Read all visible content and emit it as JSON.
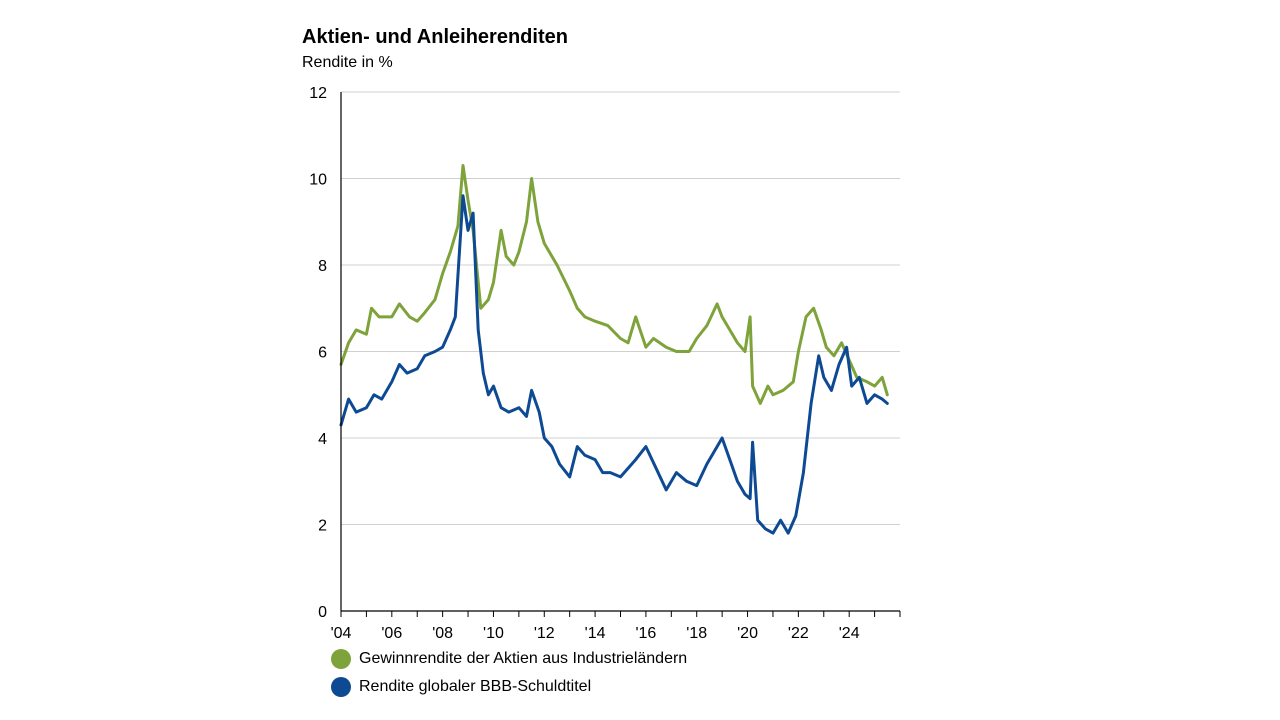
{
  "colors": {
    "equity": "#7ea33a",
    "bond": "#0e4a94",
    "grid": "#d0d0d0",
    "axis": "#000000"
  },
  "chart_data": {
    "type": "line",
    "title": "Aktien- und Anleiherenditen",
    "ylabel": "Rendite in %",
    "xlabel": "",
    "ylim": [
      0,
      12
    ],
    "yticks": [
      0,
      2,
      4,
      6,
      8,
      10,
      12
    ],
    "xlim": [
      2004,
      2026
    ],
    "xticks": [
      2004,
      2006,
      2008,
      2010,
      2012,
      2014,
      2016,
      2018,
      2020,
      2022,
      2024
    ],
    "xtick_labels": [
      "'04",
      "'06",
      "'08",
      "'10",
      "'12",
      "'14",
      "'16",
      "'18",
      "'20",
      "'22",
      "'24"
    ],
    "grid": "horizontal",
    "legend_position": "bottom-left",
    "series": [
      {
        "name": "Gewinnrendite der Aktien aus Industrieländern",
        "color": "#7ea33a",
        "x": [
          2004.0,
          2004.3,
          2004.6,
          2005.0,
          2005.2,
          2005.5,
          2006.0,
          2006.3,
          2006.7,
          2007.0,
          2007.3,
          2007.7,
          2008.0,
          2008.3,
          2008.6,
          2008.8,
          2009.0,
          2009.2,
          2009.5,
          2009.8,
          2010.0,
          2010.3,
          2010.5,
          2010.8,
          2011.0,
          2011.3,
          2011.5,
          2011.75,
          2012.0,
          2012.5,
          2013.0,
          2013.3,
          2013.6,
          2014.0,
          2014.5,
          2015.0,
          2015.3,
          2015.6,
          2016.0,
          2016.3,
          2016.8,
          2017.2,
          2017.7,
          2018.0,
          2018.4,
          2018.8,
          2019.0,
          2019.3,
          2019.6,
          2019.9,
          2020.1,
          2020.2,
          2020.5,
          2020.8,
          2021.0,
          2021.4,
          2021.8,
          2022.0,
          2022.3,
          2022.6,
          2022.9,
          2023.1,
          2023.4,
          2023.7,
          2024.0,
          2024.3,
          2024.7,
          2025.0,
          2025.3,
          2025.5
        ],
        "values": [
          5.7,
          6.2,
          6.5,
          6.4,
          7.0,
          6.8,
          6.8,
          7.1,
          6.8,
          6.7,
          6.9,
          7.2,
          7.8,
          8.3,
          8.9,
          10.3,
          9.5,
          8.8,
          7.0,
          7.2,
          7.6,
          8.8,
          8.2,
          8.0,
          8.3,
          9.0,
          10.0,
          9.0,
          8.5,
          8.0,
          7.4,
          7.0,
          6.8,
          6.7,
          6.6,
          6.3,
          6.2,
          6.8,
          6.1,
          6.3,
          6.1,
          6.0,
          6.0,
          6.3,
          6.6,
          7.1,
          6.8,
          6.5,
          6.2,
          6.0,
          6.8,
          5.2,
          4.8,
          5.2,
          5.0,
          5.1,
          5.3,
          6.0,
          6.8,
          7.0,
          6.5,
          6.1,
          5.9,
          6.2,
          5.8,
          5.4,
          5.3,
          5.2,
          5.4,
          5.0
        ]
      },
      {
        "name": "Rendite globaler BBB-Schuldtitel",
        "color": "#0e4a94",
        "x": [
          2004.0,
          2004.3,
          2004.6,
          2005.0,
          2005.3,
          2005.6,
          2006.0,
          2006.3,
          2006.6,
          2007.0,
          2007.3,
          2007.7,
          2008.0,
          2008.3,
          2008.5,
          2008.8,
          2009.0,
          2009.2,
          2009.4,
          2009.6,
          2009.8,
          2010.0,
          2010.3,
          2010.6,
          2011.0,
          2011.3,
          2011.5,
          2011.8,
          2012.0,
          2012.3,
          2012.6,
          2013.0,
          2013.3,
          2013.6,
          2014.0,
          2014.3,
          2014.6,
          2015.0,
          2015.3,
          2015.6,
          2016.0,
          2016.4,
          2016.8,
          2017.2,
          2017.6,
          2018.0,
          2018.4,
          2018.8,
          2019.0,
          2019.3,
          2019.6,
          2019.9,
          2020.1,
          2020.2,
          2020.4,
          2020.7,
          2021.0,
          2021.3,
          2021.6,
          2021.9,
          2022.2,
          2022.5,
          2022.8,
          2023.0,
          2023.3,
          2023.6,
          2023.9,
          2024.1,
          2024.4,
          2024.7,
          2025.0,
          2025.3,
          2025.5
        ],
        "values": [
          4.3,
          4.9,
          4.6,
          4.7,
          5.0,
          4.9,
          5.3,
          5.7,
          5.5,
          5.6,
          5.9,
          6.0,
          6.1,
          6.5,
          6.8,
          9.6,
          8.8,
          9.2,
          6.5,
          5.5,
          5.0,
          5.2,
          4.7,
          4.6,
          4.7,
          4.5,
          5.1,
          4.6,
          4.0,
          3.8,
          3.4,
          3.1,
          3.8,
          3.6,
          3.5,
          3.2,
          3.2,
          3.1,
          3.3,
          3.5,
          3.8,
          3.3,
          2.8,
          3.2,
          3.0,
          2.9,
          3.4,
          3.8,
          4.0,
          3.5,
          3.0,
          2.7,
          2.6,
          3.9,
          2.1,
          1.9,
          1.8,
          2.1,
          1.8,
          2.2,
          3.2,
          4.8,
          5.9,
          5.4,
          5.1,
          5.7,
          6.1,
          5.2,
          5.4,
          4.8,
          5.0,
          4.9,
          4.8
        ]
      }
    ]
  }
}
